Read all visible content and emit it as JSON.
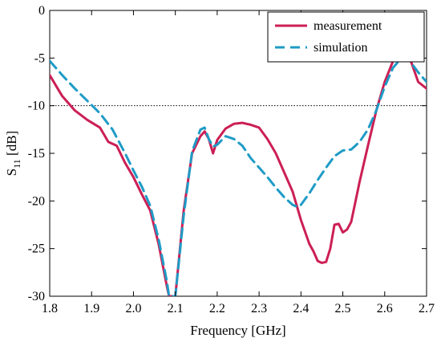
{
  "chart_data": {
    "type": "line",
    "title": "",
    "xlabel": "Frequency [GHz]",
    "ylabel": {
      "main": "S",
      "sub": "11",
      "unit": " [dB]"
    },
    "xlim": [
      1.8,
      2.7
    ],
    "ylim": [
      -30,
      0
    ],
    "xticks": [
      "1.8",
      "1.9",
      "2.0",
      "2.1",
      "2.2",
      "2.3",
      "2.4",
      "2.5",
      "2.6",
      "2.7"
    ],
    "yticks": [
      "0",
      "-5",
      "-10",
      "-15",
      "-20",
      "-25",
      "-30"
    ],
    "grid": false,
    "legend_position": "top-right",
    "reference_line": {
      "y": -10,
      "style": "dotted"
    },
    "series": [
      {
        "name": "measurement",
        "color": "#cc1f55",
        "style": "solid",
        "x": [
          1.8,
          1.83,
          1.86,
          1.89,
          1.92,
          1.94,
          1.96,
          1.98,
          2.0,
          2.02,
          2.04,
          2.06,
          2.08,
          2.085,
          2.09,
          2.095,
          2.1,
          2.12,
          2.14,
          2.16,
          2.17,
          2.18,
          2.19,
          2.2,
          2.22,
          2.24,
          2.26,
          2.28,
          2.3,
          2.32,
          2.34,
          2.36,
          2.38,
          2.4,
          2.42,
          2.43,
          2.44,
          2.45,
          2.46,
          2.47,
          2.48,
          2.49,
          2.5,
          2.51,
          2.52,
          2.54,
          2.56,
          2.58,
          2.6,
          2.62,
          2.64,
          2.66,
          2.68,
          2.7
        ],
        "y": [
          -6.8,
          -9.0,
          -10.5,
          -11.5,
          -12.3,
          -13.8,
          -14.2,
          -16.0,
          -17.5,
          -19.3,
          -21.0,
          -24.5,
          -29.0,
          -30,
          -30,
          -30,
          -30,
          -21.0,
          -15.0,
          -13.2,
          -12.7,
          -13.5,
          -15.0,
          -13.6,
          -12.4,
          -11.9,
          -11.8,
          -12.0,
          -12.3,
          -13.5,
          -15.0,
          -17.0,
          -19.0,
          -22.0,
          -24.5,
          -25.3,
          -26.3,
          -26.5,
          -26.4,
          -25.0,
          -22.5,
          -22.4,
          -23.3,
          -23.0,
          -22.2,
          -18.0,
          -14.2,
          -10.5,
          -7.5,
          -5.3,
          -4.4,
          -5.0,
          -7.5,
          -8.2
        ]
      },
      {
        "name": "simulation",
        "color": "#1f9bc6",
        "style": "dashed",
        "x": [
          1.8,
          1.83,
          1.86,
          1.89,
          1.92,
          1.95,
          1.98,
          2.0,
          2.02,
          2.04,
          2.06,
          2.08,
          2.085,
          2.09,
          2.095,
          2.1,
          2.12,
          2.14,
          2.16,
          2.17,
          2.18,
          2.19,
          2.2,
          2.22,
          2.24,
          2.26,
          2.28,
          2.3,
          2.32,
          2.34,
          2.36,
          2.38,
          2.39,
          2.4,
          2.42,
          2.44,
          2.46,
          2.48,
          2.5,
          2.52,
          2.54,
          2.56,
          2.58,
          2.6,
          2.62,
          2.64,
          2.66,
          2.68,
          2.7
        ],
        "y": [
          -5.3,
          -6.8,
          -8.2,
          -9.5,
          -10.8,
          -12.5,
          -15.0,
          -16.8,
          -18.5,
          -20.5,
          -24.0,
          -28.5,
          -30,
          -30,
          -30,
          -30,
          -21.5,
          -14.8,
          -12.5,
          -12.3,
          -13.5,
          -14.3,
          -14.1,
          -13.2,
          -13.5,
          -14.2,
          -15.5,
          -16.5,
          -17.5,
          -18.6,
          -19.6,
          -20.4,
          -20.6,
          -20.4,
          -19.2,
          -17.8,
          -16.5,
          -15.3,
          -14.7,
          -14.6,
          -13.8,
          -12.5,
          -10.5,
          -8.0,
          -6.0,
          -5.0,
          -5.3,
          -6.5,
          -7.5
        ]
      }
    ]
  }
}
